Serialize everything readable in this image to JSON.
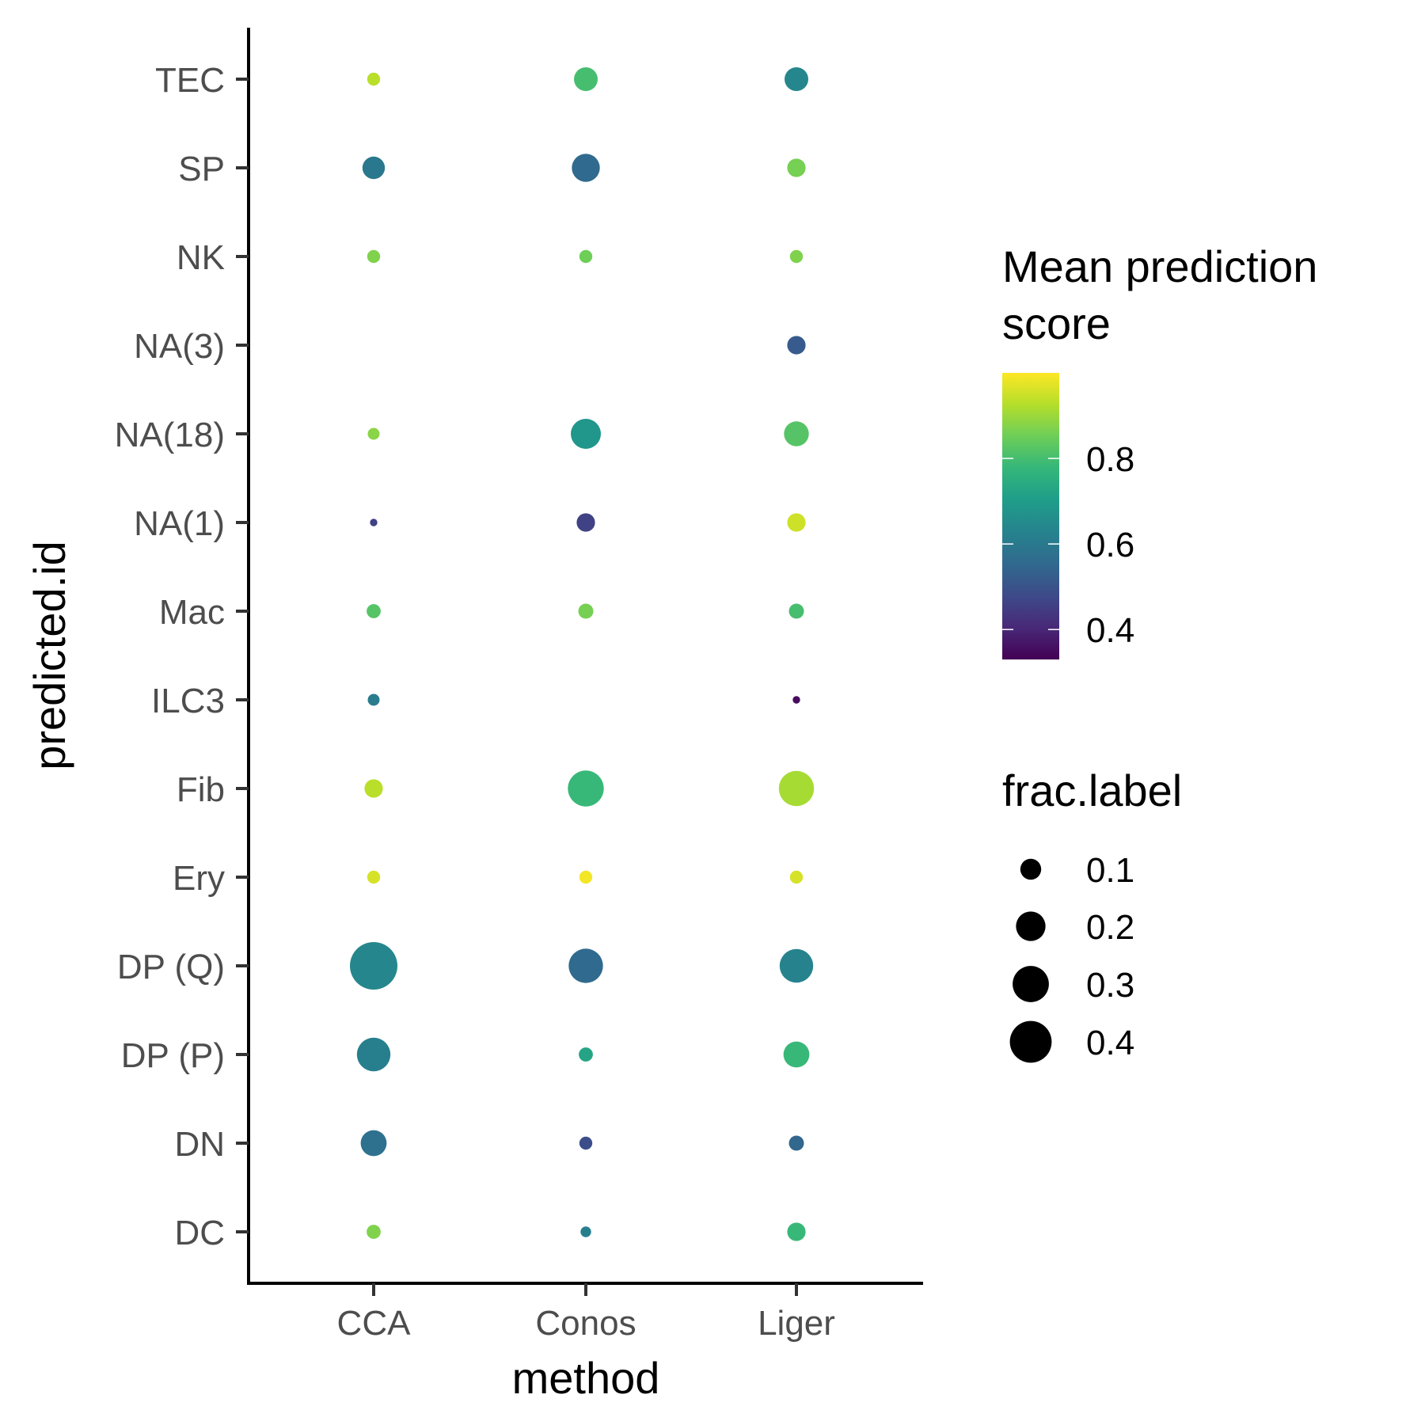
{
  "chart_data": {
    "type": "scatter",
    "subtype": "dot-plot",
    "xlabel": "method",
    "ylabel": "predicted.id",
    "x_categories": [
      "CCA",
      "Conos",
      "Liger"
    ],
    "y_categories": [
      "DC",
      "DN",
      "DP (P)",
      "DP (Q)",
      "Ery",
      "Fib",
      "ILC3",
      "Mac",
      "NA(1)",
      "NA(18)",
      "NA(3)",
      "NK",
      "SP",
      "TEC"
    ],
    "color_legend": {
      "title_lines": [
        "Mean prediction",
        "score"
      ],
      "scale": "viridis",
      "range": [
        0.33,
        1.0
      ],
      "ticks": [
        0.4,
        0.6,
        0.8
      ]
    },
    "size_legend": {
      "title": "frac.label",
      "values": [
        0.1,
        0.2,
        0.3,
        0.4
      ],
      "labels": [
        "0.1",
        "0.2",
        "0.3",
        "0.4"
      ]
    },
    "points": [
      {
        "method": "CCA",
        "id": "TEC",
        "score": 0.93,
        "frac": 0.03
      },
      {
        "method": "Conos",
        "id": "TEC",
        "score": 0.8,
        "frac": 0.1
      },
      {
        "method": "Liger",
        "id": "TEC",
        "score": 0.64,
        "frac": 0.1
      },
      {
        "method": "CCA",
        "id": "SP",
        "score": 0.6,
        "frac": 0.09
      },
      {
        "method": "Conos",
        "id": "SP",
        "score": 0.56,
        "frac": 0.14
      },
      {
        "method": "Liger",
        "id": "SP",
        "score": 0.86,
        "frac": 0.06
      },
      {
        "method": "CCA",
        "id": "NK",
        "score": 0.87,
        "frac": 0.03
      },
      {
        "method": "Conos",
        "id": "NK",
        "score": 0.85,
        "frac": 0.03
      },
      {
        "method": "Liger",
        "id": "NK",
        "score": 0.87,
        "frac": 0.03
      },
      {
        "method": "Liger",
        "id": "NA(3)",
        "score": 0.52,
        "frac": 0.06
      },
      {
        "method": "CCA",
        "id": "NA(18)",
        "score": 0.88,
        "frac": 0.025
      },
      {
        "method": "Conos",
        "id": "NA(18)",
        "score": 0.68,
        "frac": 0.16
      },
      {
        "method": "Liger",
        "id": "NA(18)",
        "score": 0.82,
        "frac": 0.11
      },
      {
        "method": "CCA",
        "id": "NA(1)",
        "score": 0.46,
        "frac": 0.01
      },
      {
        "method": "Conos",
        "id": "NA(1)",
        "score": 0.46,
        "frac": 0.06
      },
      {
        "method": "Liger",
        "id": "NA(1)",
        "score": 0.95,
        "frac": 0.06
      },
      {
        "method": "CCA",
        "id": "Mac",
        "score": 0.82,
        "frac": 0.035
      },
      {
        "method": "Conos",
        "id": "Mac",
        "score": 0.86,
        "frac": 0.04
      },
      {
        "method": "Liger",
        "id": "Mac",
        "score": 0.8,
        "frac": 0.04
      },
      {
        "method": "CCA",
        "id": "ILC3",
        "score": 0.61,
        "frac": 0.025
      },
      {
        "method": "Liger",
        "id": "ILC3",
        "score": 0.35,
        "frac": 0.01
      },
      {
        "method": "CCA",
        "id": "Fib",
        "score": 0.93,
        "frac": 0.06
      },
      {
        "method": "Conos",
        "id": "Fib",
        "score": 0.78,
        "frac": 0.23
      },
      {
        "method": "Liger",
        "id": "Fib",
        "score": 0.91,
        "frac": 0.22
      },
      {
        "method": "CCA",
        "id": "Ery",
        "score": 0.96,
        "frac": 0.03
      },
      {
        "method": "Conos",
        "id": "Ery",
        "score": 0.99,
        "frac": 0.03
      },
      {
        "method": "Liger",
        "id": "Ery",
        "score": 0.96,
        "frac": 0.03
      },
      {
        "method": "CCA",
        "id": "DP (Q)",
        "score": 0.64,
        "frac": 0.4
      },
      {
        "method": "Conos",
        "id": "DP (Q)",
        "score": 0.56,
        "frac": 0.21
      },
      {
        "method": "Liger",
        "id": "DP (Q)",
        "score": 0.63,
        "frac": 0.2
      },
      {
        "method": "CCA",
        "id": "DP (P)",
        "score": 0.62,
        "frac": 0.2
      },
      {
        "method": "Conos",
        "id": "DP (P)",
        "score": 0.72,
        "frac": 0.035
      },
      {
        "method": "Liger",
        "id": "DP (P)",
        "score": 0.78,
        "frac": 0.12
      },
      {
        "method": "CCA",
        "id": "DN",
        "score": 0.58,
        "frac": 0.12
      },
      {
        "method": "Conos",
        "id": "DN",
        "score": 0.49,
        "frac": 0.03
      },
      {
        "method": "Liger",
        "id": "DN",
        "score": 0.55,
        "frac": 0.04
      },
      {
        "method": "CCA",
        "id": "DC",
        "score": 0.87,
        "frac": 0.035
      },
      {
        "method": "Conos",
        "id": "DC",
        "score": 0.62,
        "frac": 0.02
      },
      {
        "method": "Liger",
        "id": "DC",
        "score": 0.78,
        "frac": 0.06
      }
    ]
  }
}
